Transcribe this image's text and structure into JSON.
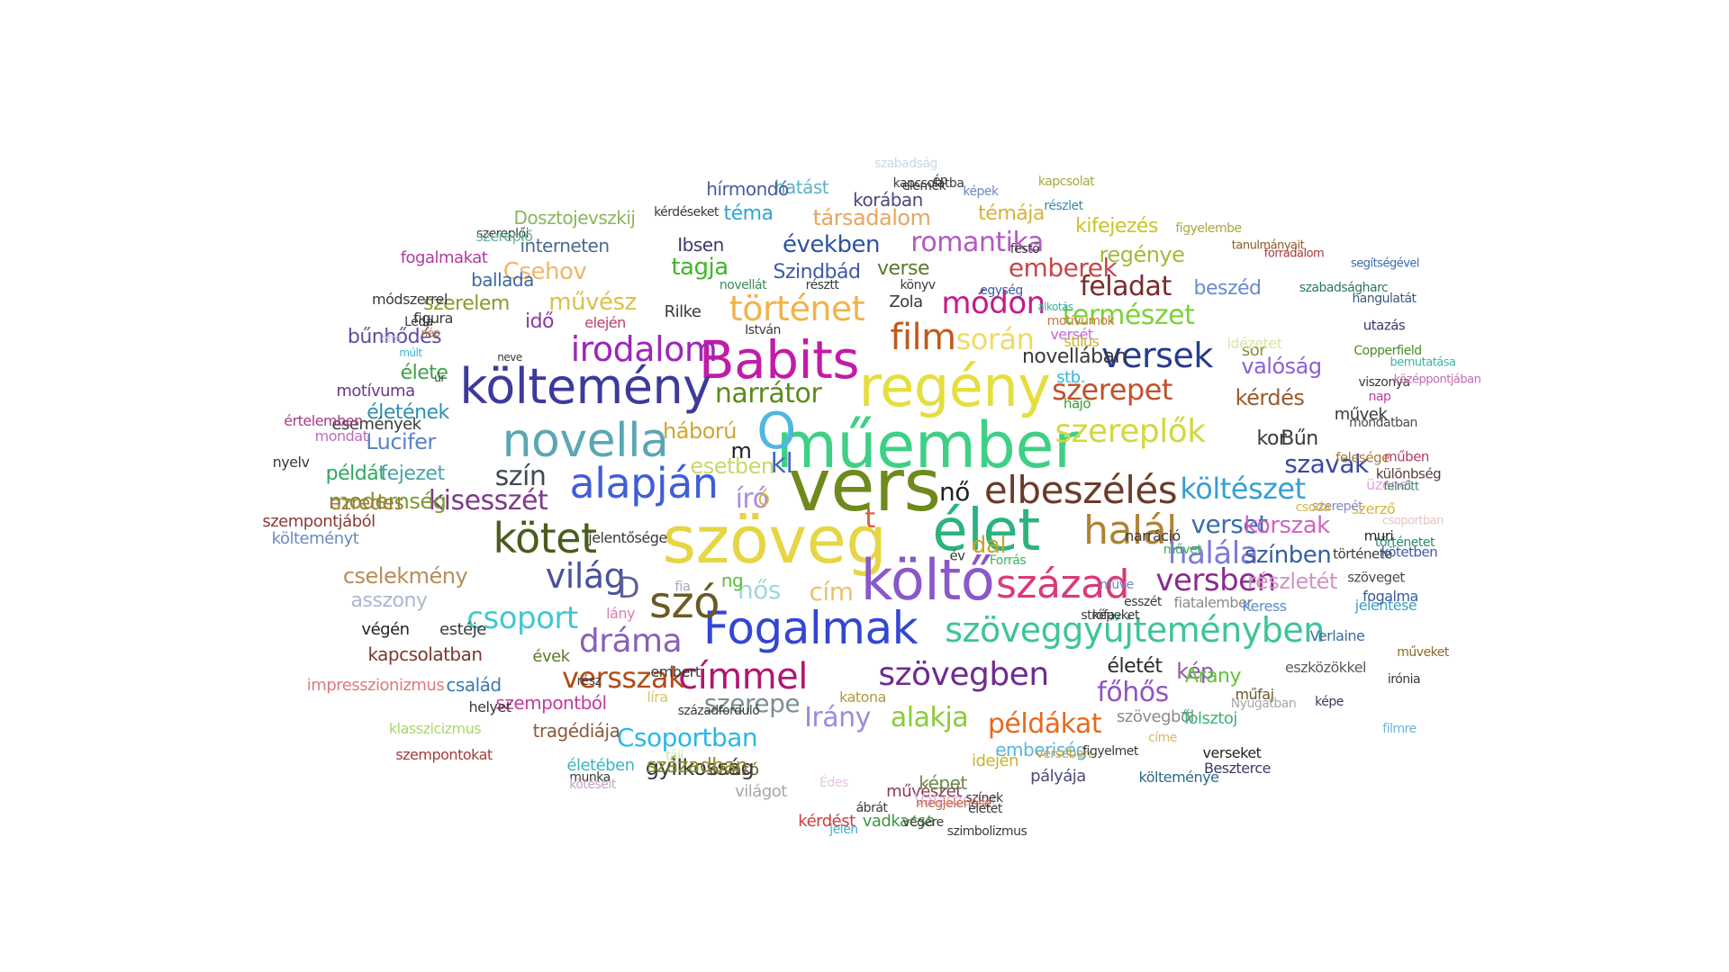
{
  "words": [
    {
      "text": "vers",
      "color": "#6e8a1c"
    },
    {
      "text": "szöveg",
      "color": "#e6d545"
    },
    {
      "text": "műember",
      "color": "#3fcf86"
    },
    {
      "text": "költő",
      "color": "#8a58c8"
    },
    {
      "text": "élet",
      "color": "#2bb37d"
    },
    {
      "text": "regény",
      "color": "#e4de3f"
    },
    {
      "text": "Babits",
      "color": "#c21ba9"
    },
    {
      "text": "költemény",
      "color": "#3c3a9a"
    },
    {
      "text": "novella",
      "color": "#5aa7b3"
    },
    {
      "text": "Fogalmak",
      "color": "#3346d3"
    },
    {
      "text": "alapján",
      "color": "#3f5ed8"
    },
    {
      "text": "század",
      "color": "#d93a7c"
    },
    {
      "text": "halál",
      "color": "#b08233"
    },
    {
      "text": "kötet",
      "color": "#4a5c1b"
    },
    {
      "text": "elbeszélés",
      "color": "#6b3b2a"
    },
    {
      "text": "O",
      "color": "#4fb6e0"
    },
    {
      "text": "szó",
      "color": "#6b5a21"
    },
    {
      "text": "szöveggyűjteményben",
      "color": "#3ec39a"
    },
    {
      "text": "címmel",
      "color": "#b0176e"
    },
    {
      "text": "szereplők",
      "color": "#d3d83e"
    },
    {
      "text": "irodalom",
      "color": "#9a28b8"
    },
    {
      "text": "film",
      "color": "#c2591b"
    },
    {
      "text": "világ",
      "color": "#49539a"
    },
    {
      "text": "versben",
      "color": "#8b2a8f"
    },
    {
      "text": "versek",
      "color": "#263b8a"
    },
    {
      "text": "történet",
      "color": "#f0b34b"
    },
    {
      "text": "szövegben",
      "color": "#6f2c8f"
    },
    {
      "text": "dráma",
      "color": "#8a5fb8"
    },
    {
      "text": "csoport",
      "color": "#42c7d2"
    },
    {
      "text": "módon",
      "color": "#c41b8c"
    },
    {
      "text": "szerepet",
      "color": "#c0512d"
    },
    {
      "text": "halála",
      "color": "#7e7bd8"
    },
    {
      "text": "versszak",
      "color": "#b34b18"
    },
    {
      "text": "során",
      "color": "#eedb66"
    },
    {
      "text": "költészet",
      "color": "#389fd3"
    },
    {
      "text": "romantika",
      "color": "#b25ac2"
    },
    {
      "text": "Irány",
      "color": "#9d8be0"
    },
    {
      "text": "alakja",
      "color": "#8bcb3a"
    },
    {
      "text": "példákat",
      "color": "#e46a1e"
    },
    {
      "text": "szerepe",
      "color": "#7d8e93"
    },
    {
      "text": "Csoportban",
      "color": "#2bb8e2"
    },
    {
      "text": "kisesszét",
      "color": "#7c3a8a"
    },
    {
      "text": "narrátor",
      "color": "#5d8a1c"
    },
    {
      "text": "természet",
      "color": "#7cd23a"
    },
    {
      "text": "feladat",
      "color": "#7a2a2a"
    },
    {
      "text": "emberek",
      "color": "#c7464a"
    },
    {
      "text": "szín",
      "color": "#3f4a52"
    },
    {
      "text": "író",
      "color": "#a98de2"
    },
    {
      "text": "kl",
      "color": "#4a64c0"
    },
    {
      "text": "nő",
      "color": "#222222"
    },
    {
      "text": "D",
      "color": "#5c5f9a"
    },
    {
      "text": "t",
      "color": "#d45a3a"
    },
    {
      "text": "verset",
      "color": "#3a6cab"
    },
    {
      "text": "szavak",
      "color": "#3b48a0"
    },
    {
      "text": "korszak",
      "color": "#d065c2"
    },
    {
      "text": "színben",
      "color": "#355e9f"
    },
    {
      "text": "kérdés",
      "color": "#9a5b2b"
    },
    {
      "text": "valóság",
      "color": "#8a61d3"
    },
    {
      "text": "részletét",
      "color": "#d493c3"
    },
    {
      "text": "hős",
      "color": "#9fd7dc"
    },
    {
      "text": "cím",
      "color": "#e9c26b"
    },
    {
      "text": "főhős",
      "color": "#9155c2"
    },
    {
      "text": "kép",
      "color": "#8a5aaa"
    },
    {
      "text": "Arany",
      "color": "#62c43a"
    },
    {
      "text": "életét",
      "color": "#2b2b2b"
    },
    {
      "text": "kor",
      "color": "#3a3a3a"
    },
    {
      "text": "Bűn",
      "color": "#3a3a3a"
    },
    {
      "text": "háború",
      "color": "#d2a52a"
    },
    {
      "text": "Lucifer",
      "color": "#5b82c6"
    },
    {
      "text": "modernség",
      "color": "#7a9a2b"
    },
    {
      "text": "cselekmény",
      "color": "#b78d5a"
    },
    {
      "text": "asszony",
      "color": "#a9b8d2"
    },
    {
      "text": "ezredes",
      "color": "#a8783a"
    },
    {
      "text": "példát",
      "color": "#2fa85d"
    },
    {
      "text": "fejezet",
      "color": "#4aa3a8"
    },
    {
      "text": "élete",
      "color": "#3fa04a"
    },
    {
      "text": "életének",
      "color": "#2f8fb3"
    },
    {
      "text": "bűnhődés",
      "color": "#5b4fa0"
    },
    {
      "text": "szerelem",
      "color": "#8a9a2b"
    },
    {
      "text": "művész",
      "color": "#d7c24a"
    },
    {
      "text": "idő",
      "color": "#8a3aa5"
    },
    {
      "text": "Csehov",
      "color": "#f0b56a"
    },
    {
      "text": "tagja",
      "color": "#42b52a"
    },
    {
      "text": "években",
      "color": "#2e52a2"
    },
    {
      "text": "Ibsen",
      "color": "#3a3a6a"
    },
    {
      "text": "társadalom",
      "color": "#e4a760"
    },
    {
      "text": "Szindbád",
      "color": "#3c5aa8"
    },
    {
      "text": "verse",
      "color": "#5a7a2b"
    },
    {
      "text": "regénye",
      "color": "#a6b93a"
    },
    {
      "text": "beszéd",
      "color": "#6a8ad0"
    },
    {
      "text": "kifejezés",
      "color": "#c8c42a"
    },
    {
      "text": "téma",
      "color": "#2fa5d3"
    },
    {
      "text": "témája",
      "color": "#d8b13a"
    },
    {
      "text": "hatást",
      "color": "#5ab3c3"
    },
    {
      "text": "korában",
      "color": "#4a4a7a"
    },
    {
      "text": "hírmondó",
      "color": "#4a5aa0"
    },
    {
      "text": "Dosztojevszkij",
      "color": "#8ab55a"
    },
    {
      "text": "interneten",
      "color": "#4a6a8a"
    },
    {
      "text": "ballada",
      "color": "#3a6aa0"
    },
    {
      "text": "fogalmakat",
      "color": "#b03aa0"
    },
    {
      "text": "kapcsolatban",
      "color": "#7a3a2a"
    },
    {
      "text": "család",
      "color": "#3a7ab0"
    },
    {
      "text": "szempontból",
      "color": "#c23aa0"
    },
    {
      "text": "tragédiája",
      "color": "#8a5a3a"
    },
    {
      "text": "évek",
      "color": "#5a7a2b"
    },
    {
      "text": "végén",
      "color": "#222222"
    },
    {
      "text": "estéje",
      "color": "#3a3a3a"
    },
    {
      "text": "impresszionizmus",
      "color": "#e07a7a"
    },
    {
      "text": "klasszicizmus",
      "color": "#a8d86a"
    },
    {
      "text": "szempontokat",
      "color": "#a83a3a"
    },
    {
      "text": "életében",
      "color": "#3ab5c2"
    },
    {
      "text": "olvasó",
      "color": "#6a5a2a"
    },
    {
      "text": "világot",
      "color": "#a8a8a8"
    },
    {
      "text": "kérdést",
      "color": "#d03a3a"
    },
    {
      "text": "művészet",
      "color": "#8a3a5a"
    },
    {
      "text": "vadkacsa",
      "color": "#3a9a3a"
    },
    {
      "text": "képet",
      "color": "#6a8a4a"
    },
    {
      "text": "Válaszodat",
      "color": "#e6b4e6"
    },
    {
      "text": "pályája",
      "color": "#4a4a7a"
    },
    {
      "text": "idején",
      "color": "#c8b42a"
    },
    {
      "text": "emberiség",
      "color": "#5ab5d8"
    },
    {
      "text": "szövegből",
      "color": "#8a8a8a"
    },
    {
      "text": "Tolsztoj",
      "color": "#3ab57a"
    },
    {
      "text": "Beszterce",
      "color": "#3a3a6a"
    },
    {
      "text": "verseket",
      "color": "#222222"
    },
    {
      "text": "költeménye",
      "color": "#2a6a8a"
    },
    {
      "text": "műfaj",
      "color": "#6a5a2a"
    },
    {
      "text": "eszközökkel",
      "color": "#5a5a5a"
    },
    {
      "text": "Verlaine",
      "color": "#3a6aa0"
    },
    {
      "text": "jelentése",
      "color": "#3aa0c2"
    },
    {
      "text": "fogalma",
      "color": "#3a5aa0"
    },
    {
      "text": "fiatalember",
      "color": "#8a8a8a"
    },
    {
      "text": "Keress",
      "color": "#5a8ad0"
    },
    {
      "text": "szerző",
      "color": "#d8b43a"
    },
    {
      "text": "üzenet",
      "color": "#e6a0e6"
    },
    {
      "text": "különbség",
      "color": "#5a3a3a"
    },
    {
      "text": "műben",
      "color": "#b03a6a"
    },
    {
      "text": "felesége",
      "color": "#a8783a"
    },
    {
      "text": "története",
      "color": "#3a3a3a"
    },
    {
      "text": "szöveget",
      "color": "#4a4a4a"
    },
    {
      "text": "kötetben",
      "color": "#3a5aa0"
    },
    {
      "text": "történetet",
      "color": "#2a8a6a"
    },
    {
      "text": "muri",
      "color": "#222222"
    },
    {
      "text": "utazás",
      "color": "#3a3a6a"
    },
    {
      "text": "Copperfield",
      "color": "#4a8a2a"
    },
    {
      "text": "segítségével",
      "color": "#3a6ab0"
    },
    {
      "text": "hangulatát",
      "color": "#3a5a7a"
    },
    {
      "text": "szabadságharc",
      "color": "#2a7a5a"
    },
    {
      "text": "forradalom",
      "color": "#a83a3a"
    },
    {
      "text": "tanulmányait",
      "color": "#8a5a2a"
    },
    {
      "text": "figyelembe",
      "color": "#a8a83a"
    },
    {
      "text": "részlet",
      "color": "#3a8ab0"
    },
    {
      "text": "festő",
      "color": "#3a3a3a"
    },
    {
      "text": "Zola",
      "color": "#3a3a3a"
    },
    {
      "text": "Rilke",
      "color": "#3a3a3a"
    },
    {
      "text": "elején",
      "color": "#c23a6a"
    },
    {
      "text": "módszerrel",
      "color": "#3a3a3a"
    },
    {
      "text": "figura",
      "color": "#3a3a3a"
    },
    {
      "text": "motívuma",
      "color": "#6a3a8a"
    },
    {
      "text": "események",
      "color": "#3a3a3a"
    },
    {
      "text": "értelemben",
      "color": "#a83a8a"
    },
    {
      "text": "mondat",
      "color": "#c06ac2"
    },
    {
      "text": "nyelv",
      "color": "#3a3a3a"
    },
    {
      "text": "szempontjából",
      "color": "#8a3a3a"
    },
    {
      "text": "költeményt",
      "color": "#6a8ac0"
    },
    {
      "text": "jelentősége",
      "color": "#3a3a3a"
    },
    {
      "text": "helyet",
      "color": "#3a3a3a"
    },
    {
      "text": "lány",
      "color": "#e07ab0"
    },
    {
      "text": "líra",
      "color": "#d8c46a"
    },
    {
      "text": "katona",
      "color": "#b09a3a"
    },
    {
      "text": "novellában",
      "color": "#3a3a3a"
    },
    {
      "text": "stb.",
      "color": "#3ab5d8"
    },
    {
      "text": "sor",
      "color": "#8a8a3a"
    },
    {
      "text": "idézetet",
      "color": "#d8e6a0"
    },
    {
      "text": "versét",
      "color": "#c06ad8"
    },
    {
      "text": "stílus",
      "color": "#c8b42a"
    },
    {
      "text": "hajó",
      "color": "#3a9a3a"
    },
    {
      "text": "művek",
      "color": "#3a3a3a"
    },
    {
      "text": "nap",
      "color": "#c23aa0"
    },
    {
      "text": "viszonya",
      "color": "#3a3a3a"
    },
    {
      "text": "mondatban",
      "color": "#4a4a4a"
    },
    {
      "text": "bemutatása",
      "color": "#3ab5a0"
    },
    {
      "text": "középpontjában",
      "color": "#c06ab0"
    },
    {
      "text": "felnőtt",
      "color": "#3a8a5a"
    },
    {
      "text": "csoportban",
      "color": "#e6c4c4"
    },
    {
      "text": "szerepét",
      "color": "#8a8ac0"
    },
    {
      "text": "csoda",
      "color": "#d8b43a"
    },
    {
      "text": "narráció",
      "color": "#3a3a3a"
    },
    {
      "text": "művet",
      "color": "#3ab55a"
    },
    {
      "text": "esszét",
      "color": "#3a3a3a"
    },
    {
      "text": "műve",
      "color": "#6a8ac0"
    },
    {
      "text": "esetben",
      "color": "#c8d86a"
    },
    {
      "text": "m",
      "color": "#222222"
    },
    {
      "text": "ó",
      "color": "#d8b43a"
    },
    {
      "text": "dal",
      "color": "#c8a42a"
    },
    {
      "text": "ng",
      "color": "#5ac23a"
    },
    {
      "text": "fia",
      "color": "#a8a8c8"
    },
    {
      "text": "év",
      "color": "#3a3a3a"
    },
    {
      "text": "Forrás",
      "color": "#3ab55a"
    },
    {
      "text": "embert",
      "color": "#3a3a3a"
    },
    {
      "text": "rész",
      "color": "#3a3a3a"
    },
    {
      "text": "tájj",
      "color": "#c8e6a0"
    },
    {
      "text": "gyilkosság",
      "color": "#3a3a3a"
    },
    {
      "text": "században",
      "color": "#8a8a2a"
    },
    {
      "text": "munka",
      "color": "#3a3a3a"
    },
    {
      "text": "kötéseit",
      "color": "#c8a4c8"
    },
    {
      "text": "Édes",
      "color": "#e6c4e6"
    },
    {
      "text": "ábrát",
      "color": "#3a3a3a"
    },
    {
      "text": "végére",
      "color": "#3a3a3a"
    },
    {
      "text": "színek",
      "color": "#3a3a3a"
    },
    {
      "text": "szimbolizmus",
      "color": "#3a3a3a"
    },
    {
      "text": "megjelenése",
      "color": "#c06a3a"
    },
    {
      "text": "jelen",
      "color": "#3ab5d8"
    },
    {
      "text": "életet",
      "color": "#3a3a3a"
    },
    {
      "text": "figyelmet",
      "color": "#3a3a3a"
    },
    {
      "text": "versében",
      "color": "#c8a43a"
    },
    {
      "text": "címe",
      "color": "#e0b46a"
    },
    {
      "text": "Nyugatban",
      "color": "#a8a8a8"
    },
    {
      "text": "képe",
      "color": "#3a3a6a"
    },
    {
      "text": "filmre",
      "color": "#6ab5d8"
    },
    {
      "text": "irónia",
      "color": "#3a3a3a"
    },
    {
      "text": "műveket",
      "color": "#8a6a2a"
    },
    {
      "text": "strófa",
      "color": "#3a3a3a"
    },
    {
      "text": "képeket",
      "color": "#3a3a3a"
    },
    {
      "text": "századforduló",
      "color": "#3a3a3a"
    },
    {
      "text": "István",
      "color": "#3a3a3a"
    },
    {
      "text": "novellát",
      "color": "#3a8a5a"
    },
    {
      "text": "résztt",
      "color": "#3a3a3a"
    },
    {
      "text": "könyv",
      "color": "#3a3a3a"
    },
    {
      "text": "egység",
      "color": "#3a5aa0"
    },
    {
      "text": "motívumok",
      "color": "#c8783a"
    },
    {
      "text": "szereplői",
      "color": "#3a3a3a"
    },
    {
      "text": "Léda",
      "color": "#3a3a3a"
    },
    {
      "text": "szereplő",
      "color": "#6ab5a0"
    },
    {
      "text": "kérdéseket",
      "color": "#3a3a3a"
    },
    {
      "text": "elemek",
      "color": "#3a3a3a"
    },
    {
      "text": "én",
      "color": "#3a3a3a"
    },
    {
      "text": "szabadság",
      "color": "#c8d8e6"
    },
    {
      "text": "kapcsolatba",
      "color": "#3a3a3a"
    },
    {
      "text": "képek",
      "color": "#6a8ac0"
    },
    {
      "text": "kapcsolat",
      "color": "#a8a83a"
    },
    {
      "text": "alkotás",
      "color": "#3ab5a0"
    },
    {
      "text": "nép",
      "color": "#a8783a"
    },
    {
      "text": "létre",
      "color": "#c8c8e6"
    },
    {
      "text": "múlt",
      "color": "#3ab5d8"
    },
    {
      "text": "úr",
      "color": "#3a3a3a"
    },
    {
      "text": "neve",
      "color": "#3a3a3a"
    }
  ]
}
